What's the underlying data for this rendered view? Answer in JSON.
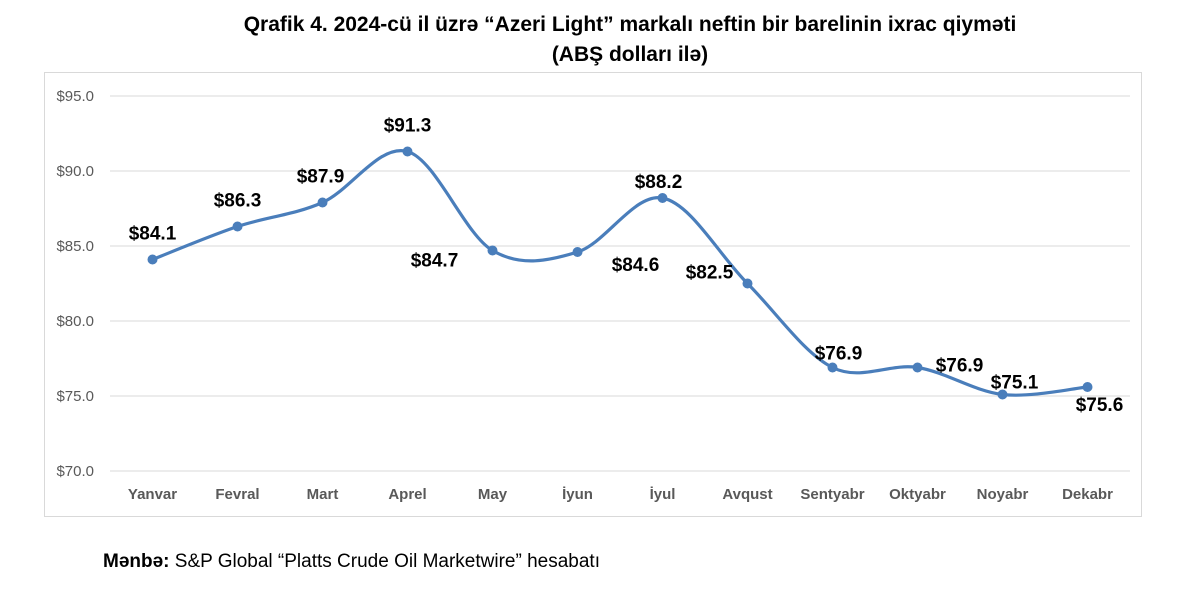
{
  "title_line1": "Qrafik 4. 2024-cü il üzrə “Azeri Light” markalı neftin bir barelinin ixrac qiyməti",
  "title_line2": "(ABŞ dolları ilə)",
  "source_label": "Mənbə:",
  "source_text": " S&P Global “Platts Crude Oil Marketwire” hesabatı",
  "colors": {
    "line": "#4a7ebb",
    "grid": "#d9d9d9",
    "tick_text": "#595959"
  },
  "chart_data": {
    "type": "line",
    "title": "Qrafik 4. 2024-cü il üzrə “Azeri Light” markalı neftin bir barelinin ixrac qiyməti (ABŞ dolları ilə)",
    "xlabel": "",
    "ylabel": "",
    "categories": [
      "Yanvar",
      "Fevral",
      "Mart",
      "Aprel",
      "May",
      "İyun",
      "İyul",
      "Avqust",
      "Sentyabr",
      "Oktyabr",
      "Noyabr",
      "Dekabr"
    ],
    "values": [
      84.1,
      86.3,
      87.9,
      91.3,
      84.7,
      84.6,
      88.2,
      82.5,
      76.9,
      76.9,
      75.1,
      75.6
    ],
    "data_labels": [
      "$84.1",
      "$86.3",
      "$87.9",
      "$91.3",
      "$84.7",
      "$84.6",
      "$88.2",
      "$82.5",
      "$76.9",
      "$76.9",
      "$75.1",
      "$75.6"
    ],
    "ylim": [
      70,
      95
    ],
    "yticks": [
      70,
      75,
      80,
      85,
      90,
      95
    ],
    "ytick_labels": [
      "$70.0",
      "$75.0",
      "$80.0",
      "$85.0",
      "$90.0",
      "$95.0"
    ],
    "grid": true,
    "legend": "none",
    "smooth": true
  }
}
